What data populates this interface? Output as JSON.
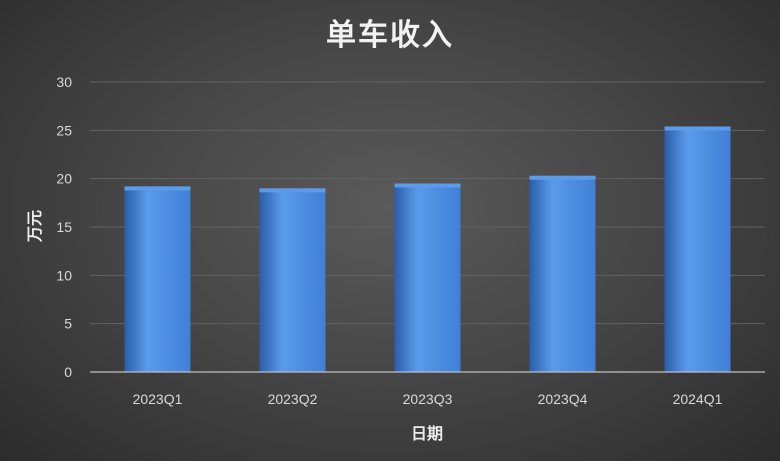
{
  "chart_data": {
    "type": "bar",
    "title": "单车收入",
    "xlabel": "日期",
    "ylabel": "万元",
    "categories": [
      "2023Q1",
      "2023Q2",
      "2023Q3",
      "2023Q4",
      "2024Q1"
    ],
    "values": [
      19.2,
      19.0,
      19.5,
      20.3,
      25.4
    ],
    "ylim": [
      0,
      30
    ],
    "yticks": [
      0,
      5,
      10,
      15,
      20,
      25,
      30
    ],
    "grid": true,
    "legend": "none"
  },
  "colors": {
    "background": "#474747",
    "bar": "#3f7fd6",
    "bar_light": "#5b9bea",
    "bar_dark": "#2a5eaa",
    "gridline": "#626262",
    "axis": "#bfbfbf"
  }
}
